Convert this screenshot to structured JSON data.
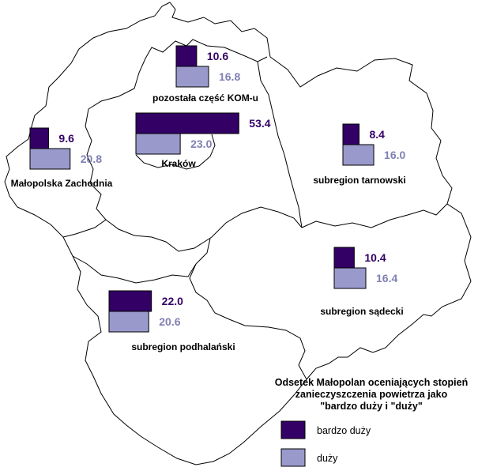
{
  "colors": {
    "dark": "#330066",
    "light": "#9999cc",
    "dark_text": "#330066",
    "light_text": "#8080b3",
    "border": "#000000"
  },
  "regions": [
    {
      "id": "kom",
      "label": "pozostała część KOM-u",
      "dark": "10.6",
      "light": "16.8"
    },
    {
      "id": "krakow",
      "label": "Kraków",
      "dark": "53.4",
      "light": "23.0"
    },
    {
      "id": "zachodnia",
      "label": "Małopolska Zachodnia",
      "dark": "9.6",
      "light": "20.8"
    },
    {
      "id": "tarnowski",
      "label": "subregion tarnowski",
      "dark": "8.4",
      "light": "16.0"
    },
    {
      "id": "sadecki",
      "label": "subregion sądecki",
      "dark": "10.4",
      "light": "16.4"
    },
    {
      "id": "podhalanski",
      "label": "subregion podhalański",
      "dark": "22.0",
      "light": "20.6"
    }
  ],
  "legend": {
    "title": [
      "Odsetek Małopolan oceniających stopień",
      "zanieczyszczenia powietrza jako",
      "\"bardzo duży i \"duży\""
    ],
    "items": [
      {
        "label": "bardzo duży",
        "color": "dark"
      },
      {
        "label": "duży",
        "color": "light"
      }
    ]
  }
}
